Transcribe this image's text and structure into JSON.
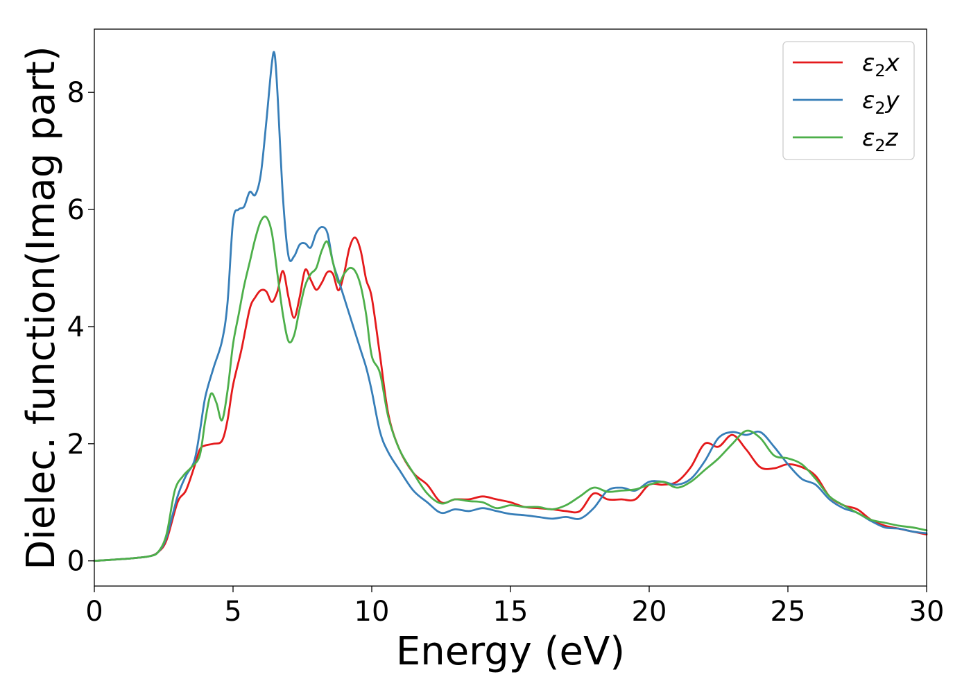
{
  "chart_data": {
    "type": "line",
    "title": "",
    "xlabel": "Energy (eV)",
    "ylabel": "Dielec. function(Imag part)",
    "xlim": [
      0,
      30
    ],
    "ylim": [
      -0.43,
      9.08
    ],
    "xticks": [
      0,
      5,
      10,
      15,
      20,
      25,
      30
    ],
    "yticks": [
      0,
      2,
      4,
      6,
      8
    ],
    "xtick_labels": [
      "0",
      "5",
      "10",
      "15",
      "20",
      "25",
      "30"
    ],
    "ytick_labels": [
      "0",
      "2",
      "4",
      "6",
      "8"
    ],
    "grid": false,
    "legend": "top-right",
    "series": [
      {
        "name": "ε2x",
        "legend_main": "ε",
        "legend_sub": "2",
        "legend_suffix": "x",
        "color": "#e41a1c",
        "x": [
          0,
          1,
          1.5,
          2,
          2.3,
          2.6,
          3,
          3.3,
          3.6,
          3.8,
          4,
          4.3,
          4.6,
          4.8,
          5,
          5.3,
          5.6,
          5.8,
          6,
          6.2,
          6.4,
          6.6,
          6.8,
          7,
          7.2,
          7.4,
          7.6,
          7.8,
          8,
          8.2,
          8.4,
          8.6,
          8.8,
          9,
          9.2,
          9.4,
          9.6,
          9.8,
          10,
          10.3,
          10.6,
          11,
          11.5,
          12,
          12.5,
          13,
          13.5,
          14,
          14.5,
          15,
          15.5,
          16,
          16.5,
          17,
          17.5,
          18,
          18.5,
          19,
          19.5,
          20,
          20.5,
          21,
          21.5,
          22,
          22.5,
          23,
          23.5,
          24,
          24.5,
          25,
          25.5,
          26,
          26.5,
          27,
          27.5,
          28,
          28.5,
          29,
          29.5,
          30
        ],
        "y": [
          0,
          0.03,
          0.05,
          0.08,
          0.15,
          0.35,
          1.0,
          1.2,
          1.6,
          1.9,
          1.97,
          2.0,
          2.05,
          2.4,
          3.0,
          3.6,
          4.3,
          4.5,
          4.62,
          4.6,
          4.42,
          4.6,
          4.95,
          4.5,
          4.15,
          4.5,
          4.97,
          4.8,
          4.63,
          4.75,
          4.93,
          4.9,
          4.62,
          4.9,
          5.35,
          5.52,
          5.3,
          4.8,
          4.5,
          3.5,
          2.5,
          1.9,
          1.5,
          1.3,
          1.0,
          1.05,
          1.05,
          1.1,
          1.05,
          1.0,
          0.92,
          0.9,
          0.88,
          0.85,
          0.85,
          1.15,
          1.05,
          1.05,
          1.05,
          1.3,
          1.3,
          1.35,
          1.6,
          2.0,
          1.95,
          2.15,
          1.9,
          1.6,
          1.58,
          1.65,
          1.6,
          1.45,
          1.1,
          0.95,
          0.88,
          0.7,
          0.6,
          0.55,
          0.5,
          0.45
        ]
      },
      {
        "name": "ε2y",
        "legend_main": "ε",
        "legend_sub": "2",
        "legend_suffix": "y",
        "color": "#377eb8",
        "x": [
          0,
          1,
          1.5,
          2,
          2.3,
          2.6,
          3,
          3.3,
          3.6,
          3.8,
          4,
          4.3,
          4.6,
          4.8,
          5,
          5.2,
          5.4,
          5.6,
          5.8,
          6,
          6.2,
          6.4,
          6.5,
          6.6,
          6.8,
          7,
          7.2,
          7.4,
          7.6,
          7.8,
          8,
          8.2,
          8.4,
          8.6,
          8.8,
          9,
          9.2,
          9.4,
          9.6,
          9.8,
          10,
          10.3,
          10.6,
          11,
          11.5,
          12,
          12.5,
          13,
          13.5,
          14,
          14.5,
          15,
          15.5,
          16,
          16.5,
          17,
          17.5,
          18,
          18.5,
          19,
          19.5,
          20,
          20.5,
          21,
          21.5,
          22,
          22.5,
          23,
          23.5,
          24,
          24.5,
          25,
          25.5,
          26,
          26.5,
          27,
          27.5,
          28,
          28.5,
          29,
          29.5,
          30
        ],
        "y": [
          0,
          0.03,
          0.05,
          0.08,
          0.15,
          0.4,
          1.1,
          1.45,
          1.7,
          2.2,
          2.8,
          3.3,
          3.75,
          4.4,
          5.8,
          6.0,
          6.05,
          6.3,
          6.25,
          6.6,
          7.5,
          8.5,
          8.65,
          8.0,
          6.2,
          5.2,
          5.2,
          5.4,
          5.42,
          5.35,
          5.6,
          5.7,
          5.6,
          5.1,
          4.8,
          4.5,
          4.2,
          3.9,
          3.6,
          3.3,
          2.9,
          2.2,
          1.85,
          1.55,
          1.2,
          1.0,
          0.82,
          0.88,
          0.85,
          0.9,
          0.85,
          0.8,
          0.78,
          0.75,
          0.72,
          0.75,
          0.72,
          0.9,
          1.2,
          1.25,
          1.2,
          1.35,
          1.35,
          1.3,
          1.4,
          1.7,
          2.1,
          2.2,
          2.15,
          2.2,
          1.95,
          1.65,
          1.4,
          1.3,
          1.05,
          0.9,
          0.82,
          0.68,
          0.57,
          0.55,
          0.5,
          0.47
        ]
      },
      {
        "name": "ε2z",
        "legend_main": "ε",
        "legend_sub": "2",
        "legend_suffix": "z",
        "color": "#4daf4a",
        "x": [
          0,
          1,
          1.5,
          2,
          2.3,
          2.6,
          2.9,
          3.2,
          3.5,
          3.8,
          4,
          4.2,
          4.4,
          4.6,
          4.8,
          5,
          5.2,
          5.4,
          5.6,
          5.8,
          6,
          6.2,
          6.4,
          6.6,
          6.8,
          7,
          7.2,
          7.4,
          7.6,
          7.8,
          8,
          8.2,
          8.4,
          8.6,
          8.8,
          9,
          9.2,
          9.4,
          9.6,
          9.8,
          10,
          10.3,
          10.6,
          11,
          11.5,
          12,
          12.5,
          13,
          13.5,
          14,
          14.5,
          15,
          15.5,
          16,
          16.5,
          17,
          17.5,
          18,
          18.5,
          19,
          19.5,
          20,
          20.5,
          21,
          21.5,
          22,
          22.5,
          23,
          23.5,
          24,
          24.5,
          25,
          25.5,
          26,
          26.5,
          27,
          27.5,
          28,
          28.5,
          29,
          29.5,
          30
        ],
        "y": [
          0,
          0.03,
          0.05,
          0.08,
          0.15,
          0.45,
          1.2,
          1.45,
          1.6,
          1.8,
          2.4,
          2.85,
          2.7,
          2.4,
          2.9,
          3.7,
          4.2,
          4.7,
          5.1,
          5.5,
          5.8,
          5.87,
          5.6,
          4.9,
          4.2,
          3.75,
          3.85,
          4.3,
          4.7,
          4.9,
          5.0,
          5.3,
          5.45,
          5.1,
          4.75,
          4.9,
          5.0,
          4.95,
          4.7,
          4.2,
          3.5,
          3.2,
          2.45,
          1.9,
          1.5,
          1.15,
          0.98,
          1.05,
          1.02,
          1.0,
          0.9,
          0.95,
          0.92,
          0.92,
          0.88,
          0.95,
          1.1,
          1.25,
          1.18,
          1.2,
          1.22,
          1.3,
          1.35,
          1.25,
          1.35,
          1.55,
          1.75,
          2.0,
          2.22,
          2.1,
          1.8,
          1.75,
          1.65,
          1.4,
          1.1,
          0.95,
          0.82,
          0.7,
          0.65,
          0.6,
          0.57,
          0.52
        ]
      }
    ]
  }
}
